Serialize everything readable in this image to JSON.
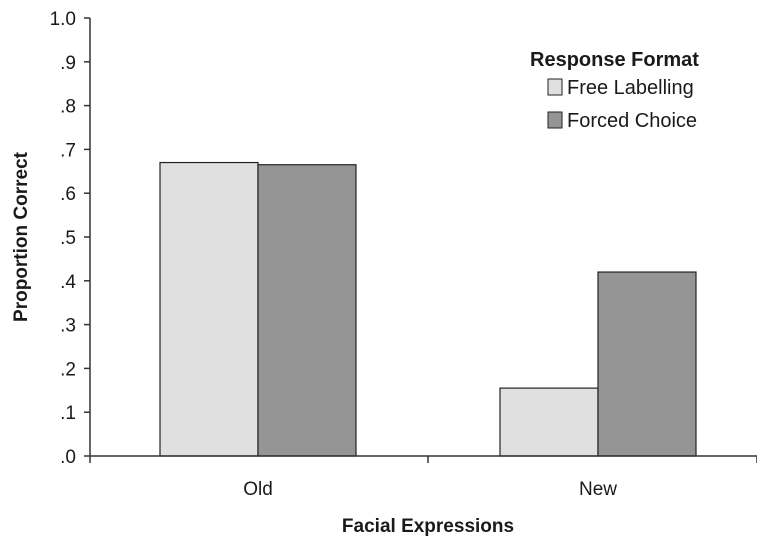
{
  "chart_data": {
    "type": "bar",
    "xlabel": "Facial Expressions",
    "ylabel": "Proportion Correct",
    "categories": [
      "Old",
      "New"
    ],
    "series": [
      {
        "name": "Free Labelling",
        "values": [
          0.67,
          0.155
        ]
      },
      {
        "name": "Forced Choice",
        "values": [
          0.665,
          0.42
        ]
      }
    ],
    "ylim": [
      0,
      1.0
    ],
    "yticks": [
      0,
      0.1,
      0.2,
      0.3,
      0.4,
      0.5,
      0.6,
      0.7,
      0.8,
      0.9,
      1.0
    ],
    "ytick_labels": [
      ".0",
      ".1",
      ".2",
      ".3",
      ".4",
      ".5",
      ".6",
      ".7",
      ".8",
      ".9",
      "1.0"
    ],
    "legend": {
      "title": "Response Format",
      "position": "top-right"
    },
    "grid": false,
    "colors": {
      "Free Labelling": "#e0e0e0",
      "Forced Choice": "#959595",
      "bar_outline": "#222222",
      "axis": "#333333"
    }
  }
}
